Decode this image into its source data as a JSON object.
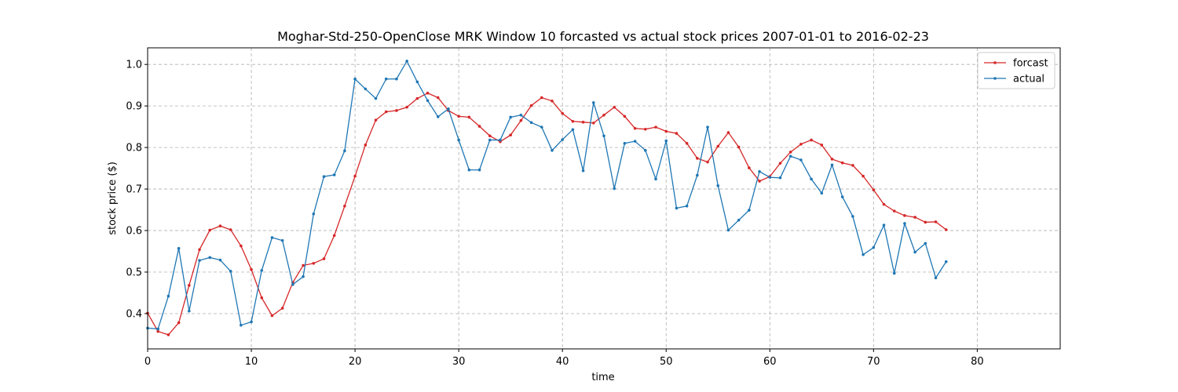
{
  "chart_data": {
    "type": "line",
    "title": "Moghar-Std-250-OpenClose MRK Window 10 forcasted vs actual stock prices 2007-01-01 to 2016-02-23",
    "xlabel": "time",
    "ylabel": "stock price ($)",
    "xlim": [
      0,
      88
    ],
    "ylim": [
      0.315,
      1.04
    ],
    "xticks": [
      0,
      10,
      20,
      30,
      40,
      50,
      60,
      70,
      80
    ],
    "yticks": [
      0.4,
      0.5,
      0.6,
      0.7,
      0.8,
      0.9,
      1.0
    ],
    "xtick_labels": [
      "0",
      "10",
      "20",
      "30",
      "40",
      "50",
      "60",
      "70",
      "80"
    ],
    "ytick_labels": [
      "0.4",
      "0.5",
      "0.6",
      "0.7",
      "0.8",
      "0.9",
      "1.0"
    ],
    "grid": true,
    "legend_position": "top-right",
    "series": [
      {
        "name": "forcast",
        "color": "#d62728",
        "values": [
          0.401,
          0.357,
          0.349,
          0.378,
          0.468,
          0.554,
          0.601,
          0.611,
          0.602,
          0.563,
          0.506,
          0.438,
          0.395,
          0.413,
          0.475,
          0.516,
          0.521,
          0.532,
          0.588,
          0.659,
          0.731,
          0.806,
          0.866,
          0.886,
          0.889,
          0.897,
          0.918,
          0.931,
          0.92,
          0.889,
          0.875,
          0.873,
          0.851,
          0.828,
          0.814,
          0.83,
          0.865,
          0.901,
          0.92,
          0.912,
          0.882,
          0.863,
          0.861,
          0.859,
          0.878,
          0.897,
          0.875,
          0.846,
          0.844,
          0.849,
          0.839,
          0.834,
          0.81,
          0.774,
          0.765,
          0.803,
          0.836,
          0.801,
          0.751,
          0.719,
          0.73,
          0.762,
          0.789,
          0.808,
          0.818,
          0.806,
          0.772,
          0.763,
          0.757,
          0.731,
          0.698,
          0.663,
          0.647,
          0.636,
          0.632,
          0.62,
          0.621,
          0.602
        ]
      },
      {
        "name": "actual",
        "color": "#1f77b4",
        "values": [
          0.365,
          0.363,
          0.442,
          0.557,
          0.406,
          0.528,
          0.535,
          0.529,
          0.502,
          0.372,
          0.38,
          0.504,
          0.583,
          0.576,
          0.47,
          0.489,
          0.64,
          0.73,
          0.734,
          0.792,
          0.965,
          0.941,
          0.918,
          0.965,
          0.965,
          1.008,
          0.958,
          0.913,
          0.874,
          0.893,
          0.818,
          0.746,
          0.746,
          0.818,
          0.818,
          0.873,
          0.878,
          0.86,
          0.849,
          0.793,
          0.819,
          0.843,
          0.744,
          0.908,
          0.828,
          0.701,
          0.81,
          0.815,
          0.793,
          0.724,
          0.816,
          0.654,
          0.659,
          0.733,
          0.849,
          0.708,
          0.601,
          0.625,
          0.649,
          0.742,
          0.728,
          0.727,
          0.779,
          0.77,
          0.724,
          0.69,
          0.758,
          0.681,
          0.634,
          0.542,
          0.559,
          0.613,
          0.497,
          0.617,
          0.548,
          0.569,
          0.486,
          0.525
        ]
      }
    ]
  }
}
